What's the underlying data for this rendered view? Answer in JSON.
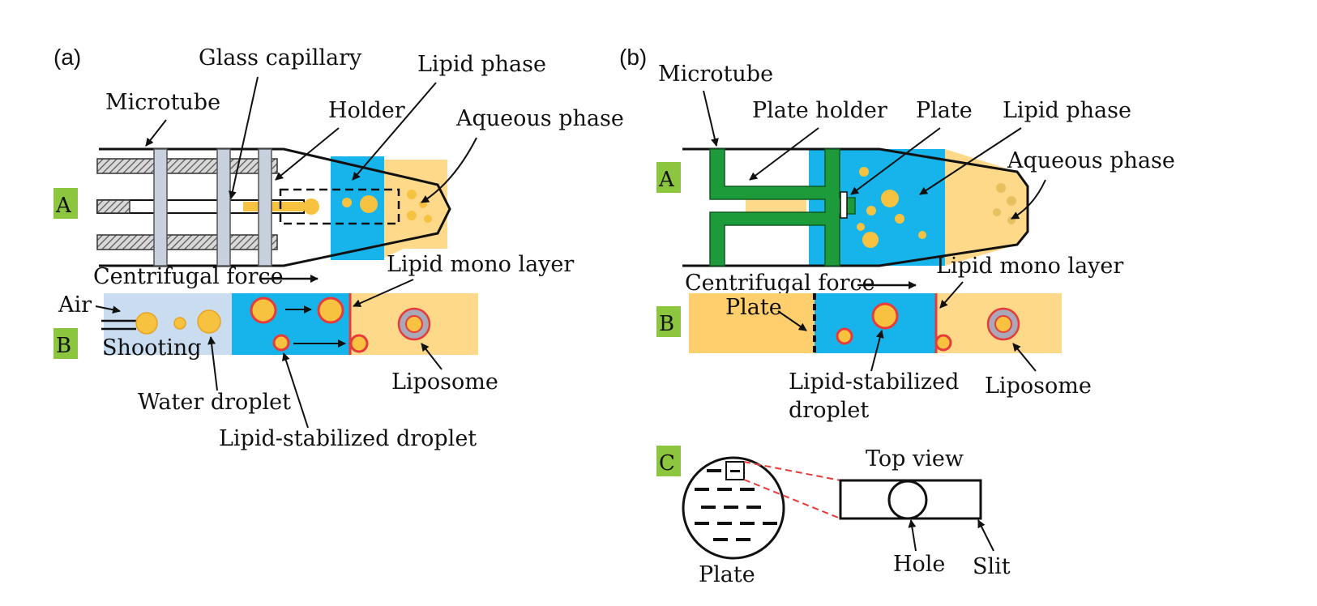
{
  "colors": {
    "lipid": "#17b4ec",
    "aqueous": "#ffd98a",
    "air": "#c9dcf0",
    "droplet": "#f7c240",
    "droplet_edge": "#e8a420",
    "holder_green": "#1d9b3b",
    "monolayer": "#e83a3a",
    "tag_bg": "#8cc63f",
    "rod": "#9a9a9a",
    "clamp": "#c7d1de",
    "tube": "#111111"
  },
  "panel_a": {
    "label": "(a)",
    "sub_a": "A",
    "sub_b": "B",
    "microtube": "Microtube",
    "glass_capillary": "Glass capillary",
    "holder": "Holder",
    "lipid_phase": "Lipid phase",
    "aqueous_phase": "Aqueous phase",
    "centrifugal_force": "Centrifugal force",
    "air": "Air",
    "shooting": "Shooting",
    "lipid_mono_layer": "Lipid mono layer",
    "liposome": "Liposome",
    "water_droplet": "Water droplet",
    "lipid_stabilized_droplet": "Lipid-stabilized droplet"
  },
  "panel_b": {
    "label": "(b)",
    "sub_a": "A",
    "sub_b": "B",
    "sub_c": "C",
    "microtube": "Microtube",
    "plate_holder": "Plate holder",
    "plate": "Plate",
    "lipid_phase": "Lipid phase",
    "aqueous_phase": "Aqueous phase",
    "centrifugal_force": "Centrifugal force",
    "lipid_mono_layer": "Lipid mono layer",
    "plate_b": "Plate",
    "lipid_stabilized_1": "Lipid-stabilized",
    "lipid_stabilized_2": "droplet",
    "liposome": "Liposome",
    "top_view": "Top view",
    "plate_c": "Plate",
    "hole": "Hole",
    "slit": "Slit"
  }
}
